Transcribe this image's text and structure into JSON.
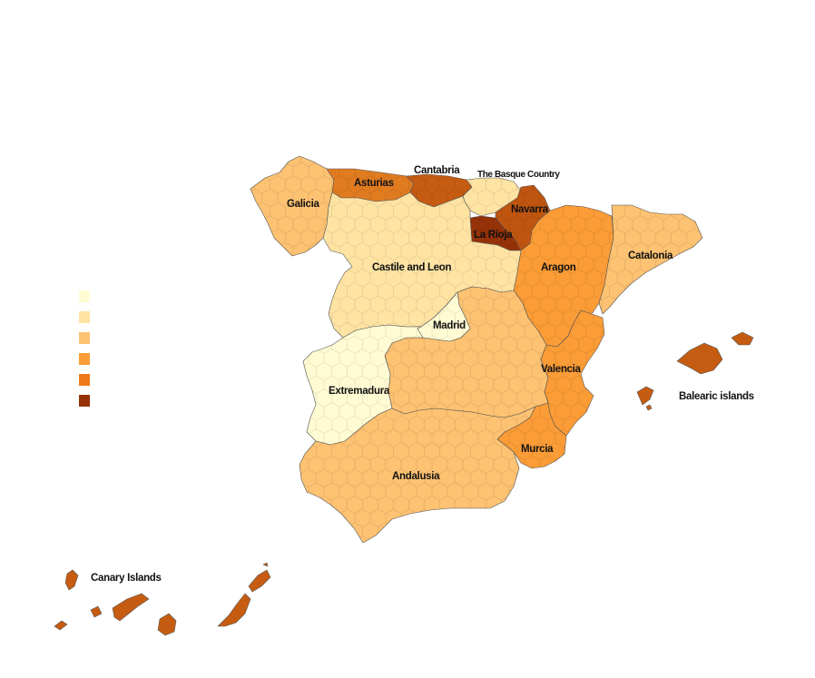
{
  "map": {
    "legend": {
      "colors": [
        "#fffbd3",
        "#fee3a3",
        "#fdc272",
        "#fb9c36",
        "#ed7a19",
        "#953208"
      ]
    },
    "regions": [
      {
        "id": "galicia",
        "label": "Galicia",
        "class": 2,
        "color": "#fdc272"
      },
      {
        "id": "asturias",
        "label": "Asturias",
        "class": 4,
        "color": "#e07b20"
      },
      {
        "id": "cantabria",
        "label": "Cantabria",
        "class": 5,
        "color": "#c65c12"
      },
      {
        "id": "basque",
        "label": "The Basque Country",
        "class": 1,
        "color": "#fee3a3"
      },
      {
        "id": "navarra",
        "label": "Navarra",
        "class": 5,
        "color": "#c05510"
      },
      {
        "id": "larioja",
        "label": "La Rioja",
        "class": 6,
        "color": "#953208"
      },
      {
        "id": "aragon",
        "label": "Aragon",
        "class": 3,
        "color": "#fb9c36"
      },
      {
        "id": "catalonia",
        "label": "Catalonia",
        "class": 2,
        "color": "#fdc272"
      },
      {
        "id": "castile",
        "label": "Castile and Leon",
        "class": 1,
        "color": "#fee3a3"
      },
      {
        "id": "madrid",
        "label": "Madrid",
        "class": 0,
        "color": "#fffbd3"
      },
      {
        "id": "castilla-la-mancha",
        "label": "",
        "class": 2,
        "color": "#fdc272"
      },
      {
        "id": "extremadura",
        "label": "Extremadura",
        "class": 0,
        "color": "#fffbd3"
      },
      {
        "id": "valencia",
        "label": "Valencia",
        "class": 3,
        "color": "#fb9c36"
      },
      {
        "id": "murcia",
        "label": "Murcia",
        "class": 3,
        "color": "#fb9c36"
      },
      {
        "id": "andalusia",
        "label": "Andalusia",
        "class": 2,
        "color": "#fdc272"
      },
      {
        "id": "balearic",
        "label": "Balearic islands",
        "class": 5,
        "color": "#c65c12"
      },
      {
        "id": "canary",
        "label": "Canary Islands",
        "class": 5,
        "color": "#c65c12"
      }
    ]
  }
}
